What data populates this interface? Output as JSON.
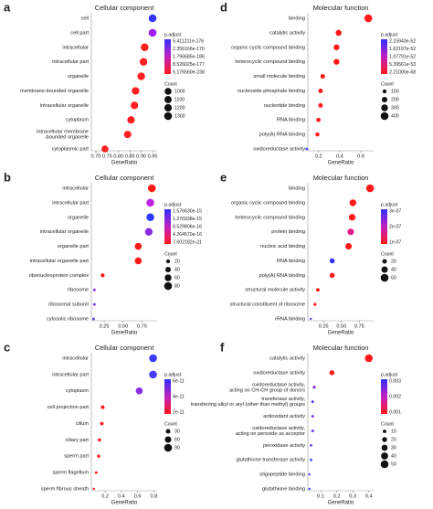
{
  "chart_data": [
    {
      "type": "scatter",
      "panel_label": "a",
      "title": "Cellular component",
      "x_label": "GeneRatio",
      "categories": [
        [
          "cell"
        ],
        [
          "cell part"
        ],
        [
          "intracellular"
        ],
        [
          "intracellular part"
        ],
        [
          "organelle"
        ],
        [
          "membrane-bounded organelle"
        ],
        [
          "intracellular organelle"
        ],
        [
          "cytoplasm"
        ],
        [
          "intracellular membrane",
          "-bounded organelle"
        ],
        [
          "cytoplasmic part"
        ]
      ],
      "values": [
        0.95,
        0.95,
        0.915,
        0.91,
        0.9,
        0.875,
        0.87,
        0.855,
        0.84,
        0.74
      ],
      "counts": [
        1300,
        1290,
        1250,
        1240,
        1230,
        1200,
        1190,
        1170,
        1150,
        1000
      ],
      "colors": [
        "#3535ff",
        "#a020f0",
        "#ff2020",
        "#ff2020",
        "#ff2020",
        "#ff2020",
        "#ff2020",
        "#ff2020",
        "#ff2020",
        "#ff2020"
      ],
      "xlim": [
        0.68,
        0.97
      ],
      "xticks": [
        {
          "value": 0.7,
          "label": "0.70"
        },
        0.75,
        {
          "value": 0.8,
          "label": "0.80"
        },
        0.85,
        {
          "value": 0.9,
          "label": "0.90"
        },
        0.95
      ],
      "legend": {
        "color_title": "p.adjust",
        "color_labels": [
          "5.411211e-176",
          "2.356166e-176",
          "1.796685e-186",
          "8.526025e-177",
          "6.176560e-238"
        ],
        "size_title": "Count",
        "size_ticks": [
          1000,
          1100,
          1200,
          1300
        ]
      }
    },
    {
      "type": "scatter",
      "panel_label": "d",
      "title": "Molecular function",
      "x_label": "GeneRatio",
      "categories": [
        [
          "binding"
        ],
        [
          "catalytic activity"
        ],
        [
          "organic cyclic compound binding"
        ],
        [
          "heterocyclic compound binding"
        ],
        [
          "small molecule binding"
        ],
        [
          "nucleoside phosphate binding"
        ],
        [
          "nucleotide binding"
        ],
        [
          "RNA binding"
        ],
        [
          "poly(A) RNA binding"
        ],
        [
          "oxidoreductase activity"
        ]
      ],
      "values": [
        0.67,
        0.39,
        0.37,
        0.37,
        0.24,
        0.22,
        0.22,
        0.2,
        0.19,
        0.09
      ],
      "counts": [
        400,
        230,
        220,
        220,
        140,
        130,
        130,
        120,
        110,
        50
      ],
      "colors": [
        "#ff1a1a",
        "#ff1a1a",
        "#ff1a1a",
        "#ff1a1a",
        "#ff1a1a",
        "#ff1a1a",
        "#ff1a1a",
        "#ff1a1a",
        "#ff1a1a",
        "#5050ff"
      ],
      "xlim": [
        0.1,
        0.72
      ],
      "xticks": [
        0.2,
        0.4,
        0.6
      ],
      "legend": {
        "color_title": "p.adjust",
        "color_labels": [
          "2.15943e-52",
          "1.62197e-52",
          "1.07791e-52",
          "5.39561e-53",
          "2.21000e-68"
        ],
        "size_title": "Count",
        "size_ticks": [
          100,
          200,
          300,
          400
        ]
      }
    },
    {
      "type": "scatter",
      "panel_label": "b",
      "title": "Cellular component",
      "x_label": "GeneRatio",
      "categories": [
        [
          "intracellular"
        ],
        [
          "intracellular part"
        ],
        [
          "organelle"
        ],
        [
          "intracellular organelle"
        ],
        [
          "organelle part"
        ],
        [
          "intracellular organelle part"
        ],
        [
          "ribonucleoprotein complex"
        ],
        [
          "ribosome"
        ],
        [
          "ribosomal subunit"
        ],
        [
          "cytosolic ribosome"
        ]
      ],
      "values": [
        0.88,
        0.86,
        0.86,
        0.84,
        0.7,
        0.7,
        0.23,
        0.12,
        0.12,
        0.11
      ],
      "counts": [
        80,
        78,
        78,
        76,
        62,
        62,
        20,
        10,
        10,
        10
      ],
      "colors": [
        "#ff1a1a",
        "#c020e0",
        "#2a3cff",
        "#8a2be2",
        "#ff1a1a",
        "#ff1a1a",
        "#ff1a1a",
        "#9a30e0",
        "#7a40ee",
        "#6a50f0"
      ],
      "xlim": [
        0.08,
        0.95
      ],
      "xticks": [
        0.25,
        {
          "value": 0.5,
          "label": "0.50"
        },
        0.75
      ],
      "legend": {
        "color_title": "p.adjust",
        "color_labels": [
          "1.576630e-15",
          "1.276938e-15",
          "8.529806e-16",
          "4.264570e-16",
          "7.602182e-21"
        ],
        "size_title": "Count",
        "size_ticks": [
          20,
          40,
          60,
          80
        ]
      }
    },
    {
      "type": "scatter",
      "panel_label": "e",
      "title": "Molecular function",
      "x_label": "GeneRatio",
      "categories": [
        [
          "binding"
        ],
        [
          "organic cyclic compound binding"
        ],
        [
          "heterocyclic compound binding"
        ],
        [
          "protein binding"
        ],
        [
          "nucleic acid binding"
        ],
        [
          "RNA binding"
        ],
        [
          "poly(A) RNA binding"
        ],
        [
          "structural molecule activity"
        ],
        [
          "structural constituent of ribosome"
        ],
        [
          "rRNA binding"
        ]
      ],
      "values": [
        0.9,
        0.66,
        0.65,
        0.63,
        0.6,
        0.37,
        0.37,
        0.17,
        0.13,
        0.07
      ],
      "counts": [
        60,
        44,
        43,
        42,
        40,
        25,
        25,
        12,
        9,
        5
      ],
      "colors": [
        "#ff1a1a",
        "#ff1a1a",
        "#ff1a1a",
        "#e0208a",
        "#ff1a1a",
        "#3030ff",
        "#ff1a1a",
        "#ff1a1a",
        "#ff1a1a",
        "#7040f0"
      ],
      "xlim": [
        0.03,
        0.95
      ],
      "xticks": [
        0.25,
        {
          "value": 0.5,
          "label": "0.50"
        },
        0.75
      ],
      "legend": {
        "color_title": "p.adjust",
        "color_labels": [
          "3e-07",
          "2e-07",
          "1e-07"
        ],
        "size_title": "Count",
        "size_ticks": [
          20,
          40,
          60
        ]
      }
    },
    {
      "type": "scatter",
      "panel_label": "c",
      "title": "Cellular component",
      "x_label": "GeneRatio",
      "categories": [
        [
          "intracellular"
        ],
        [
          "intracellular part"
        ],
        [
          "cytoplasm"
        ],
        [
          "cell projection part"
        ],
        [
          "cilium"
        ],
        [
          "ciliary part"
        ],
        [
          "sperm part"
        ],
        [
          "sperm flagellum"
        ],
        [
          "sperm fibrous sheath"
        ]
      ],
      "values": [
        0.79,
        0.79,
        0.62,
        0.17,
        0.16,
        0.13,
        0.12,
        0.09,
        0.06
      ],
      "counts": [
        90,
        90,
        70,
        20,
        18,
        15,
        14,
        10,
        7
      ],
      "colors": [
        "#3c3cff",
        "#4a3cff",
        "#8a2be2",
        "#ff1a1a",
        "#ff1a1a",
        "#ff1a1a",
        "#ff1a1a",
        "#ff1a1a",
        "#ff1a1a"
      ],
      "xlim": [
        0.03,
        0.84
      ],
      "xticks": [
        0.2,
        0.4,
        0.6,
        0.8
      ],
      "legend": {
        "color_title": "p.adjust",
        "color_labels": [
          "6e-11",
          "4e-11",
          "2e-11"
        ],
        "size_title": "Count",
        "size_ticks": [
          30,
          60,
          90
        ]
      }
    },
    {
      "type": "scatter",
      "panel_label": "f",
      "title": "Molecular function",
      "x_label": "GeneRatio",
      "categories": [
        [
          "catalytic activity"
        ],
        [
          "oxidoreductase activity"
        ],
        [
          "oxidoreductase activity,",
          "acting on CH-CH group of donors"
        ],
        [
          "transferase activity,",
          "transferring alkyl or aryl (other than methyl) groups"
        ],
        [
          "antioxidant activity"
        ],
        [
          "oxidoreductase activity,",
          "acting on peroxide as acceptor"
        ],
        [
          "peroxidase activity"
        ],
        [
          "glutathione transferase activity"
        ],
        [
          "oligopeptide binding"
        ],
        [
          "glutathione binding"
        ]
      ],
      "values": [
        0.4,
        0.17,
        0.06,
        0.05,
        0.05,
        0.05,
        0.04,
        0.04,
        0.03,
        0.03
      ],
      "counts": [
        50,
        20,
        7,
        6,
        6,
        6,
        5,
        5,
        4,
        4
      ],
      "colors": [
        "#ff1a1a",
        "#ff1a1a",
        "#8a2be2",
        "#5a40f0",
        "#7a30e8",
        "#6a38f0",
        "#6a38f0",
        "#4040ff",
        "#4a40ff",
        "#4040ff"
      ],
      "xlim": [
        0.02,
        0.43
      ],
      "xticks": [
        0.1,
        0.2,
        0.3,
        0.4
      ],
      "legend": {
        "color_title": "p.adjust",
        "color_labels": [
          "0.003",
          "0.002",
          "0.001"
        ],
        "size_title": "Count",
        "size_ticks": [
          10,
          20,
          30,
          40,
          50
        ]
      }
    }
  ]
}
